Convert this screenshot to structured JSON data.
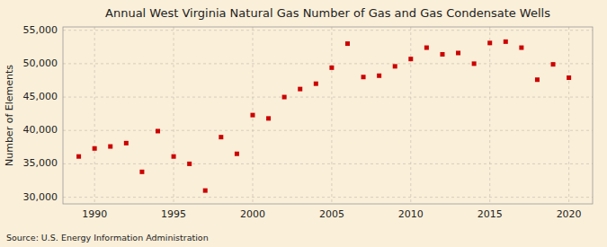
{
  "chart_data": {
    "type": "scatter",
    "title": "Annual West Virginia Natural Gas Number of Gas and Gas Condensate Wells",
    "y_label": "Number of Elements",
    "source": "Source: U.S. Energy Information Administration",
    "x": [
      1989,
      1990,
      1991,
      1992,
      1993,
      1994,
      1995,
      1996,
      1997,
      1998,
      1999,
      2000,
      2001,
      2002,
      2003,
      2004,
      2005,
      2006,
      2007,
      2008,
      2009,
      2010,
      2011,
      2012,
      2013,
      2014,
      2015,
      2016,
      2017,
      2018,
      2019,
      2020
    ],
    "values": [
      36100,
      37300,
      37600,
      38100,
      33800,
      39900,
      36100,
      35000,
      31000,
      39000,
      36500,
      42300,
      41800,
      45000,
      46200,
      47000,
      49400,
      53000,
      48000,
      48200,
      49600,
      50700,
      52400,
      51400,
      51600,
      50000,
      53100,
      53300,
      52400,
      47600,
      49900,
      47900
    ],
    "color": "#cc0000",
    "marker": "square",
    "xlim": [
      1988.0,
      2021.5
    ],
    "ylim": [
      29000,
      55500
    ],
    "xticks": [
      1990,
      1995,
      2000,
      2005,
      2010,
      2015,
      2020
    ],
    "yticks": [
      {
        "value": 30000,
        "label": "30,000"
      },
      {
        "value": 35000,
        "label": "35,000"
      },
      {
        "value": 40000,
        "label": "40,000"
      },
      {
        "value": 45000,
        "label": "45,000"
      },
      {
        "value": 50000,
        "label": "50,000"
      },
      {
        "value": 55000,
        "label": "55,000"
      }
    ],
    "grid": true
  }
}
